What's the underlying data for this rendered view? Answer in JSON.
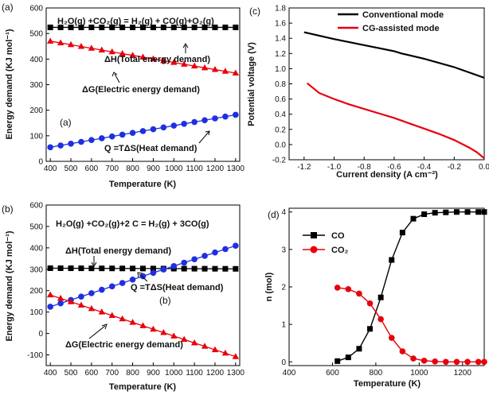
{
  "chart_data": [
    {
      "panel": "a",
      "type": "line",
      "panel_label": "(a)",
      "inner_label": "(a)",
      "equation": "H₂O(g) +CO₂(g) = H₂(g) + CO(g)+O₂(g)",
      "xlabel": "Temperature (K)",
      "ylabel": "Energy demand (KJ mol⁻¹)",
      "xlim": [
        380,
        1320
      ],
      "ylim": [
        0,
        600
      ],
      "xticks": [
        400,
        500,
        600,
        700,
        800,
        900,
        1000,
        1100,
        1200,
        1300
      ],
      "yticks": [
        0,
        100,
        200,
        300,
        400,
        500,
        600
      ],
      "x": [
        400,
        450,
        500,
        550,
        600,
        650,
        700,
        750,
        800,
        850,
        900,
        950,
        1000,
        1050,
        1100,
        1150,
        1200,
        1250,
        1300
      ],
      "series": [
        {
          "name": "ΔH(Total energy demand)",
          "color": "#000000",
          "marker": "square",
          "start": 524,
          "end": 524
        },
        {
          "name": "ΔG(Electric energy demand)",
          "color": "#e8000b",
          "marker": "triangle",
          "start": 470,
          "end": 345
        },
        {
          "name": "Q =TΔS(Heat demand)",
          "color": "#1f2fe0",
          "marker": "circle",
          "start": 55,
          "end": 182
        }
      ],
      "annotations": [
        {
          "text": "ΔH(Total energy demand)",
          "series": 0
        },
        {
          "text": "ΔG(Electric energy demand)",
          "series": 1
        },
        {
          "text": "Q =TΔS(Heat demand)",
          "series": 2
        }
      ]
    },
    {
      "panel": "b",
      "type": "line",
      "panel_label": "(b)",
      "inner_label": "(b)",
      "equation": "H₂O(g) +CO₂(g)+2 C = H₂(g) + 3CO(g)",
      "xlabel": "Temperature (K)",
      "ylabel": "Energy demand (KJ mol⁻¹)",
      "xlim": [
        380,
        1320
      ],
      "ylim": [
        -150,
        600
      ],
      "xticks": [
        400,
        500,
        600,
        700,
        800,
        900,
        1000,
        1100,
        1200,
        1300
      ],
      "yticks": [
        -100,
        0,
        100,
        200,
        300,
        400,
        500,
        600
      ],
      "x": [
        400,
        450,
        500,
        550,
        600,
        650,
        700,
        750,
        800,
        850,
        900,
        950,
        1000,
        1050,
        1100,
        1150,
        1200,
        1250,
        1300
      ],
      "series": [
        {
          "name": "ΔH(Total energy demand)",
          "color": "#000000",
          "marker": "square",
          "start": 305,
          "end": 302
        },
        {
          "name": "Q =TΔS(Heat demand)",
          "color": "#1f2fe0",
          "marker": "circle",
          "start": 125,
          "end": 410
        },
        {
          "name": "ΔG(Electric energy demand)",
          "color": "#e8000b",
          "marker": "triangle",
          "start": 180,
          "end": -108
        }
      ],
      "annotations": [
        {
          "text": "ΔH(Total energy demand)",
          "series": 0
        },
        {
          "text": "Q =TΔS(Heat demand)",
          "series": 1
        },
        {
          "text": "ΔG(Electric energy demand)",
          "series": 2
        }
      ]
    },
    {
      "panel": "c",
      "type": "line",
      "panel_label": "(c)",
      "xlabel": "Current density (A cm⁻²)",
      "ylabel": "Potential voltage (V)",
      "xlim": [
        -1.3,
        0.0
      ],
      "ylim": [
        -0.2,
        1.8
      ],
      "xticks": [
        -1.2,
        -1.0,
        -0.8,
        -0.6,
        -0.4,
        -0.2,
        0.0
      ],
      "xtick_labels": [
        "-1.2",
        "-1.0",
        "-0.8",
        "-0.6",
        "-0.4",
        "-0.2",
        "0.0"
      ],
      "yticks": [
        -0.2,
        0.0,
        0.2,
        0.4,
        0.6,
        0.8,
        1.0,
        1.2,
        1.4,
        1.6,
        1.8
      ],
      "ytick_labels": [
        "-0.2",
        "0.0",
        "0.2",
        "0.4",
        "0.6",
        "0.8",
        "1.0",
        "1.2",
        "1.4",
        "1.6",
        "1.8"
      ],
      "series": [
        {
          "name": "Conventional mode",
          "color": "#000000",
          "x": [
            -1.2,
            -1.0,
            -0.8,
            -0.6,
            -0.55,
            -0.4,
            -0.2,
            0.0
          ],
          "y": [
            1.48,
            1.39,
            1.31,
            1.23,
            1.2,
            1.13,
            1.02,
            0.88
          ]
        },
        {
          "name": "CG-assisted mode",
          "color": "#e8000b",
          "x": [
            -1.18,
            -1.1,
            -1.0,
            -0.9,
            -0.8,
            -0.7,
            -0.6,
            -0.5,
            -0.4,
            -0.3,
            -0.2,
            -0.1,
            -0.05,
            0.0
          ],
          "y": [
            0.81,
            0.68,
            0.6,
            0.53,
            0.47,
            0.41,
            0.35,
            0.28,
            0.21,
            0.14,
            0.06,
            -0.04,
            -0.1,
            -0.18
          ]
        }
      ]
    },
    {
      "panel": "d",
      "type": "line",
      "panel_label": "(d)",
      "xlabel": "Temperature (K)",
      "ylabel": "n (mol)",
      "xlim": [
        400,
        1300
      ],
      "ylim": [
        -0.1,
        4.1
      ],
      "xticks": [
        400,
        600,
        800,
        1000,
        1200
      ],
      "yticks": [
        0,
        1,
        2,
        3,
        4
      ],
      "series": [
        {
          "name": "CO",
          "color": "#000000",
          "marker": "square",
          "x": [
            623,
            673,
            723,
            773,
            823,
            873,
            923,
            973,
            1023,
            1073,
            1123,
            1173,
            1223,
            1273,
            1300
          ],
          "y": [
            0.02,
            0.12,
            0.35,
            0.88,
            1.72,
            2.72,
            3.45,
            3.82,
            3.94,
            3.98,
            3.99,
            4.0,
            4.0,
            4.0,
            4.0
          ]
        },
        {
          "name": "CO₂",
          "color": "#e8000b",
          "marker": "circle",
          "x": [
            623,
            673,
            723,
            773,
            823,
            873,
            923,
            973,
            1023,
            1073,
            1123,
            1173,
            1223,
            1273,
            1300
          ],
          "y": [
            1.98,
            1.94,
            1.82,
            1.56,
            1.14,
            0.64,
            0.28,
            0.09,
            0.03,
            0.01,
            0.0,
            0.0,
            0.0,
            0.0,
            0.0
          ]
        }
      ]
    }
  ]
}
